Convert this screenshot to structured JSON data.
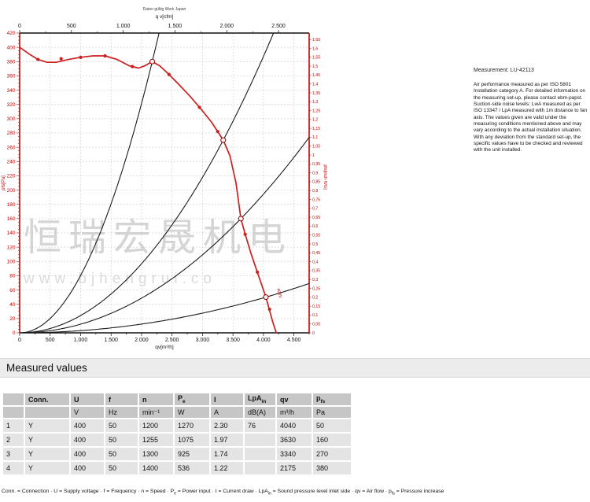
{
  "watermark": {
    "line1": "恒瑞宏晟机电",
    "line2": "www.bjhengrui.co"
  },
  "measurement_note": {
    "title": "Measurement: LU-42113",
    "body": "Air performance measured as per ISO 5801 Installation category A. For detailed information on the measuring set-up, please contact ebm-papst. Suction-side noise levels: LwA measured as per ISO 13347 / LpA measured with 1m distance to fan axis. The values given are valid under the measuring conditions mentioned above and may vary according to the actual installation situation. With any deviation from the standard set-up, the specific values have to be checked and reviewed with the unit installed."
  },
  "section": {
    "title": "Measured values"
  },
  "table": {
    "headers": [
      {
        "t": ""
      },
      {
        "t": "Conn."
      },
      {
        "t": "U"
      },
      {
        "t": "f"
      },
      {
        "t": "n"
      },
      {
        "t": "P",
        "sub": "e"
      },
      {
        "t": "I"
      },
      {
        "t": "LpA",
        "sub": "in"
      },
      {
        "t": "qv"
      },
      {
        "t": "p",
        "sub": "fs"
      }
    ],
    "units": [
      "",
      "",
      "V",
      "Hz",
      "min⁻¹",
      "W",
      "A",
      "dB(A)",
      "m³/h",
      "Pa"
    ],
    "rows": [
      [
        "1",
        "Y",
        "400",
        "50",
        "1200",
        "1270",
        "2.30",
        "76",
        "4040",
        "50"
      ],
      [
        "2",
        "Y",
        "400",
        "50",
        "1255",
        "1075",
        "1.97",
        "",
        "3630",
        "160"
      ],
      [
        "3",
        "Y",
        "400",
        "50",
        "1300",
        "925",
        "1.74",
        "",
        "3340",
        "270"
      ],
      [
        "4",
        "Y",
        "400",
        "50",
        "1400",
        "536",
        "1.22",
        "",
        "2175",
        "380"
      ]
    ],
    "legend_parts": [
      {
        "t": "Conn. = Connection · U = Supply voltage · f = Frequency · n = Speed · P"
      },
      {
        "t": "e",
        "sub": true
      },
      {
        "t": " = Power input · I = Current draw · LpA"
      },
      {
        "t": "in",
        "sub": true
      },
      {
        "t": " = Sound pressure level inlet side · qv = Air flow · p"
      },
      {
        "t": "fs",
        "sub": true
      },
      {
        "t": " = Pressure increase"
      }
    ]
  },
  "chart_data": {
    "type": "line",
    "title_small": "Daten gültig Werk Japan",
    "x_bottom": {
      "label": "qv[m³/h]",
      "unit": "m³/h",
      "min": 0,
      "max": 4750,
      "major_step": 500,
      "minor_step": 250,
      "last_label": 4500,
      "labels": [
        "0",
        "500",
        "1.000",
        "1.500",
        "2.000",
        "2.500",
        "3.000",
        "3.500",
        "4.000",
        "4.500"
      ]
    },
    "x_top": {
      "label": "q v[cfm]",
      "unit": "cfm",
      "ticks": [
        0,
        500,
        1000,
        1500,
        2000,
        2500
      ],
      "labels": [
        "0",
        "500",
        "1.000",
        "1.500",
        "2.000",
        "2.500"
      ],
      "m3h_per_cfm": 1.699,
      "minor_step": 250,
      "minor_max": 2750
    },
    "y_left": {
      "label": "pfs[Pa]",
      "unit": "Pa",
      "min": 0,
      "max": 420,
      "major_step": 20,
      "minor_step": 5
    },
    "y_right": {
      "label": "pfs[inch WG]",
      "unit": "inch WG",
      "min": 0,
      "max": 1.65,
      "step": 0.05,
      "pa_per_unit": 249.089
    },
    "fan_curve": {
      "name": "fan pressure curve",
      "label": "400V",
      "color": "#cc1f1f",
      "points": [
        [
          0,
          400
        ],
        [
          150,
          391
        ],
        [
          300,
          383
        ],
        [
          450,
          379
        ],
        [
          600,
          379
        ],
        [
          800,
          383
        ],
        [
          1000,
          386
        ],
        [
          1200,
          388
        ],
        [
          1400,
          388
        ],
        [
          1600,
          383
        ],
        [
          1800,
          374
        ],
        [
          1950,
          371
        ],
        [
          2050,
          374
        ],
        [
          2175,
          380
        ],
        [
          2300,
          374
        ],
        [
          2450,
          362
        ],
        [
          2600,
          349
        ],
        [
          2800,
          331
        ],
        [
          3000,
          311
        ],
        [
          3150,
          295
        ],
        [
          3340,
          270
        ],
        [
          3450,
          248
        ],
        [
          3550,
          210
        ],
        [
          3630,
          160
        ],
        [
          3700,
          138
        ],
        [
          3800,
          110
        ],
        [
          3900,
          85
        ],
        [
          4040,
          50
        ],
        [
          4150,
          16
        ],
        [
          4210,
          0
        ]
      ]
    },
    "marker_points": [
      [
        300,
        383
      ],
      [
        680,
        384
      ],
      [
        1000,
        386
      ],
      [
        1400,
        388
      ],
      [
        1850,
        373
      ],
      [
        2450,
        362
      ],
      [
        2950,
        316
      ],
      [
        3250,
        282
      ],
      [
        3700,
        138
      ],
      [
        3900,
        85
      ],
      [
        4100,
        33
      ]
    ],
    "operating_points": [
      {
        "n": 1,
        "qv": 4040,
        "pfs": 50
      },
      {
        "n": 2,
        "qv": 3630,
        "pfs": 160
      },
      {
        "n": 3,
        "qv": 3340,
        "pfs": 270
      },
      {
        "n": 4,
        "qv": 2175,
        "pfs": 380
      }
    ],
    "throttle_curve_color": "#1a1a1a",
    "axis_color_red": "#cc0000",
    "axis_color_black": "#111111",
    "grid_color": "#c3c3c3",
    "legend_position": "none",
    "grid": "on"
  }
}
